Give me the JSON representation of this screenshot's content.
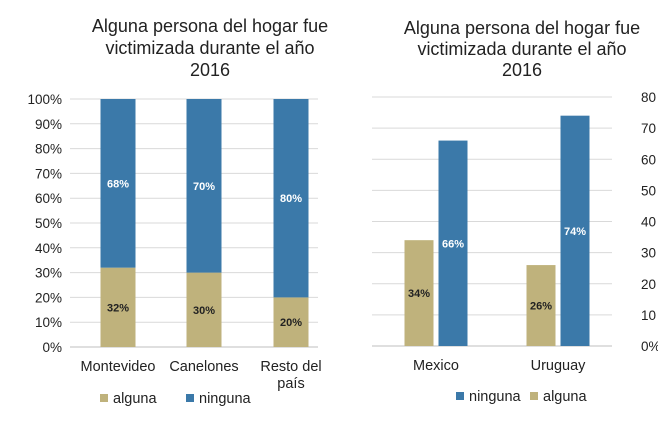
{
  "chart_data": [
    {
      "type": "bar",
      "stacked": true,
      "title_lines": [
        "Alguna persona del hogar fue",
        "victimizada durante el año",
        "2016"
      ],
      "categories": [
        [
          "Montevideo"
        ],
        [
          "Canelones"
        ],
        [
          "Resto del",
          "país"
        ]
      ],
      "series": [
        {
          "name": "alguna",
          "color": "#bfb27c",
          "values": [
            32,
            30,
            20
          ],
          "labels": [
            "32%",
            "30%",
            "20%"
          ]
        },
        {
          "name": "ninguna",
          "color": "#3b79a9",
          "values": [
            68,
            70,
            80
          ],
          "labels": [
            "68%",
            "70%",
            "80%"
          ]
        }
      ],
      "yticks": [
        "0%",
        "10%",
        "20%",
        "30%",
        "40%",
        "50%",
        "60%",
        "70%",
        "80%",
        "90%",
        "100%"
      ],
      "ylim": [
        0,
        100
      ],
      "legend": [
        "alguna",
        "ninguna"
      ]
    },
    {
      "type": "bar",
      "stacked": false,
      "title_lines": [
        "Alguna persona del hogar fue",
        "victimizada durante el año",
        "2016"
      ],
      "categories": [
        [
          "Mexico"
        ],
        [
          "Uruguay"
        ]
      ],
      "series": [
        {
          "name": "alguna",
          "color": "#bfb27c",
          "values": [
            34,
            26
          ],
          "labels": [
            "34%",
            "26%"
          ]
        },
        {
          "name": "ninguna",
          "color": "#3b79a9",
          "values": [
            66,
            74
          ],
          "labels": [
            "66%",
            "74%"
          ]
        }
      ],
      "yticks": [
        "0%",
        "10",
        "20",
        "30",
        "40",
        "50",
        "60",
        "70",
        "80"
      ],
      "ylim": [
        0,
        80
      ],
      "legend": [
        "ninguna",
        "alguna"
      ]
    }
  ],
  "colors": {
    "alguna": "#bfb27c",
    "ninguna": "#3b79a9",
    "alguna_label": "#222222",
    "ninguna_label": "#ffffff"
  }
}
